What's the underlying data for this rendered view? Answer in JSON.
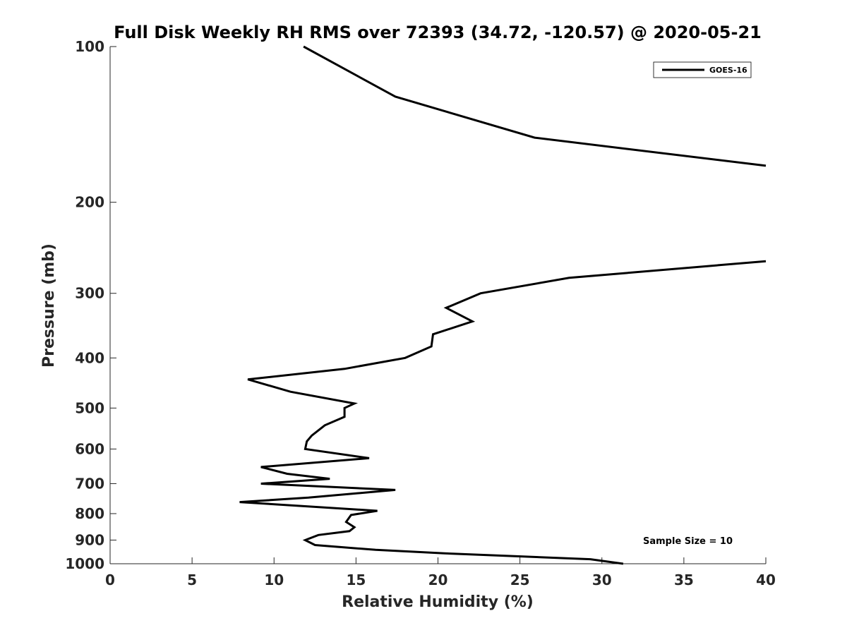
{
  "chart_data": {
    "type": "line",
    "title": "Full Disk Weekly RH RMS over 72393 (34.72, -120.57) @ 2020-05-21",
    "xlabel": "Relative Humidity (%)",
    "ylabel": "Pressure (mb)",
    "xlim": [
      0,
      40
    ],
    "ylim": [
      100,
      1000
    ],
    "y_scale": "log",
    "y_reversed": true,
    "grid": false,
    "x_ticks": [
      0,
      5,
      10,
      15,
      20,
      25,
      30,
      35,
      40
    ],
    "y_ticks": [
      100,
      200,
      300,
      400,
      500,
      600,
      700,
      800,
      900,
      1000
    ],
    "legend": {
      "position": "top-right",
      "entries": [
        "GOES-16"
      ]
    },
    "annotation": "Sample Size = 10",
    "series": [
      {
        "name": "GOES-16",
        "color": "#000000",
        "segments": [
          {
            "points": [
              [
                11.8,
                100
              ],
              [
                17.4,
                125
              ],
              [
                25.9,
                150
              ],
              [
                40,
                170
              ]
            ]
          },
          {
            "points": [
              [
                40,
                260
              ],
              [
                28.0,
                280
              ],
              [
                22.6,
                300
              ],
              [
                20.5,
                320
              ],
              [
                22.1,
                340
              ],
              [
                19.7,
                360
              ],
              [
                19.6,
                380
              ],
              [
                18.0,
                400
              ],
              [
                14.3,
                420
              ],
              [
                8.4,
                440
              ],
              [
                11.0,
                465
              ],
              [
                14.9,
                490
              ],
              [
                14.3,
                500
              ],
              [
                14.3,
                520
              ],
              [
                13.1,
                540
              ],
              [
                12.3,
                565
              ],
              [
                12.0,
                580
              ],
              [
                11.9,
                600
              ],
              [
                15.8,
                625
              ],
              [
                9.2,
                650
              ],
              [
                10.8,
                670
              ],
              [
                13.4,
                685
              ],
              [
                9.2,
                700
              ],
              [
                17.4,
                720
              ],
              [
                12.1,
                745
              ],
              [
                7.9,
                760
              ],
              [
                16.3,
                790
              ],
              [
                14.7,
                805
              ],
              [
                14.4,
                830
              ],
              [
                14.9,
                850
              ],
              [
                14.6,
                865
              ],
              [
                12.7,
                880
              ],
              [
                11.9,
                900
              ],
              [
                12.5,
                920
              ],
              [
                16.2,
                940
              ],
              [
                20.4,
                955
              ],
              [
                29.3,
                980
              ],
              [
                31.3,
                1000
              ]
            ]
          }
        ]
      }
    ]
  }
}
